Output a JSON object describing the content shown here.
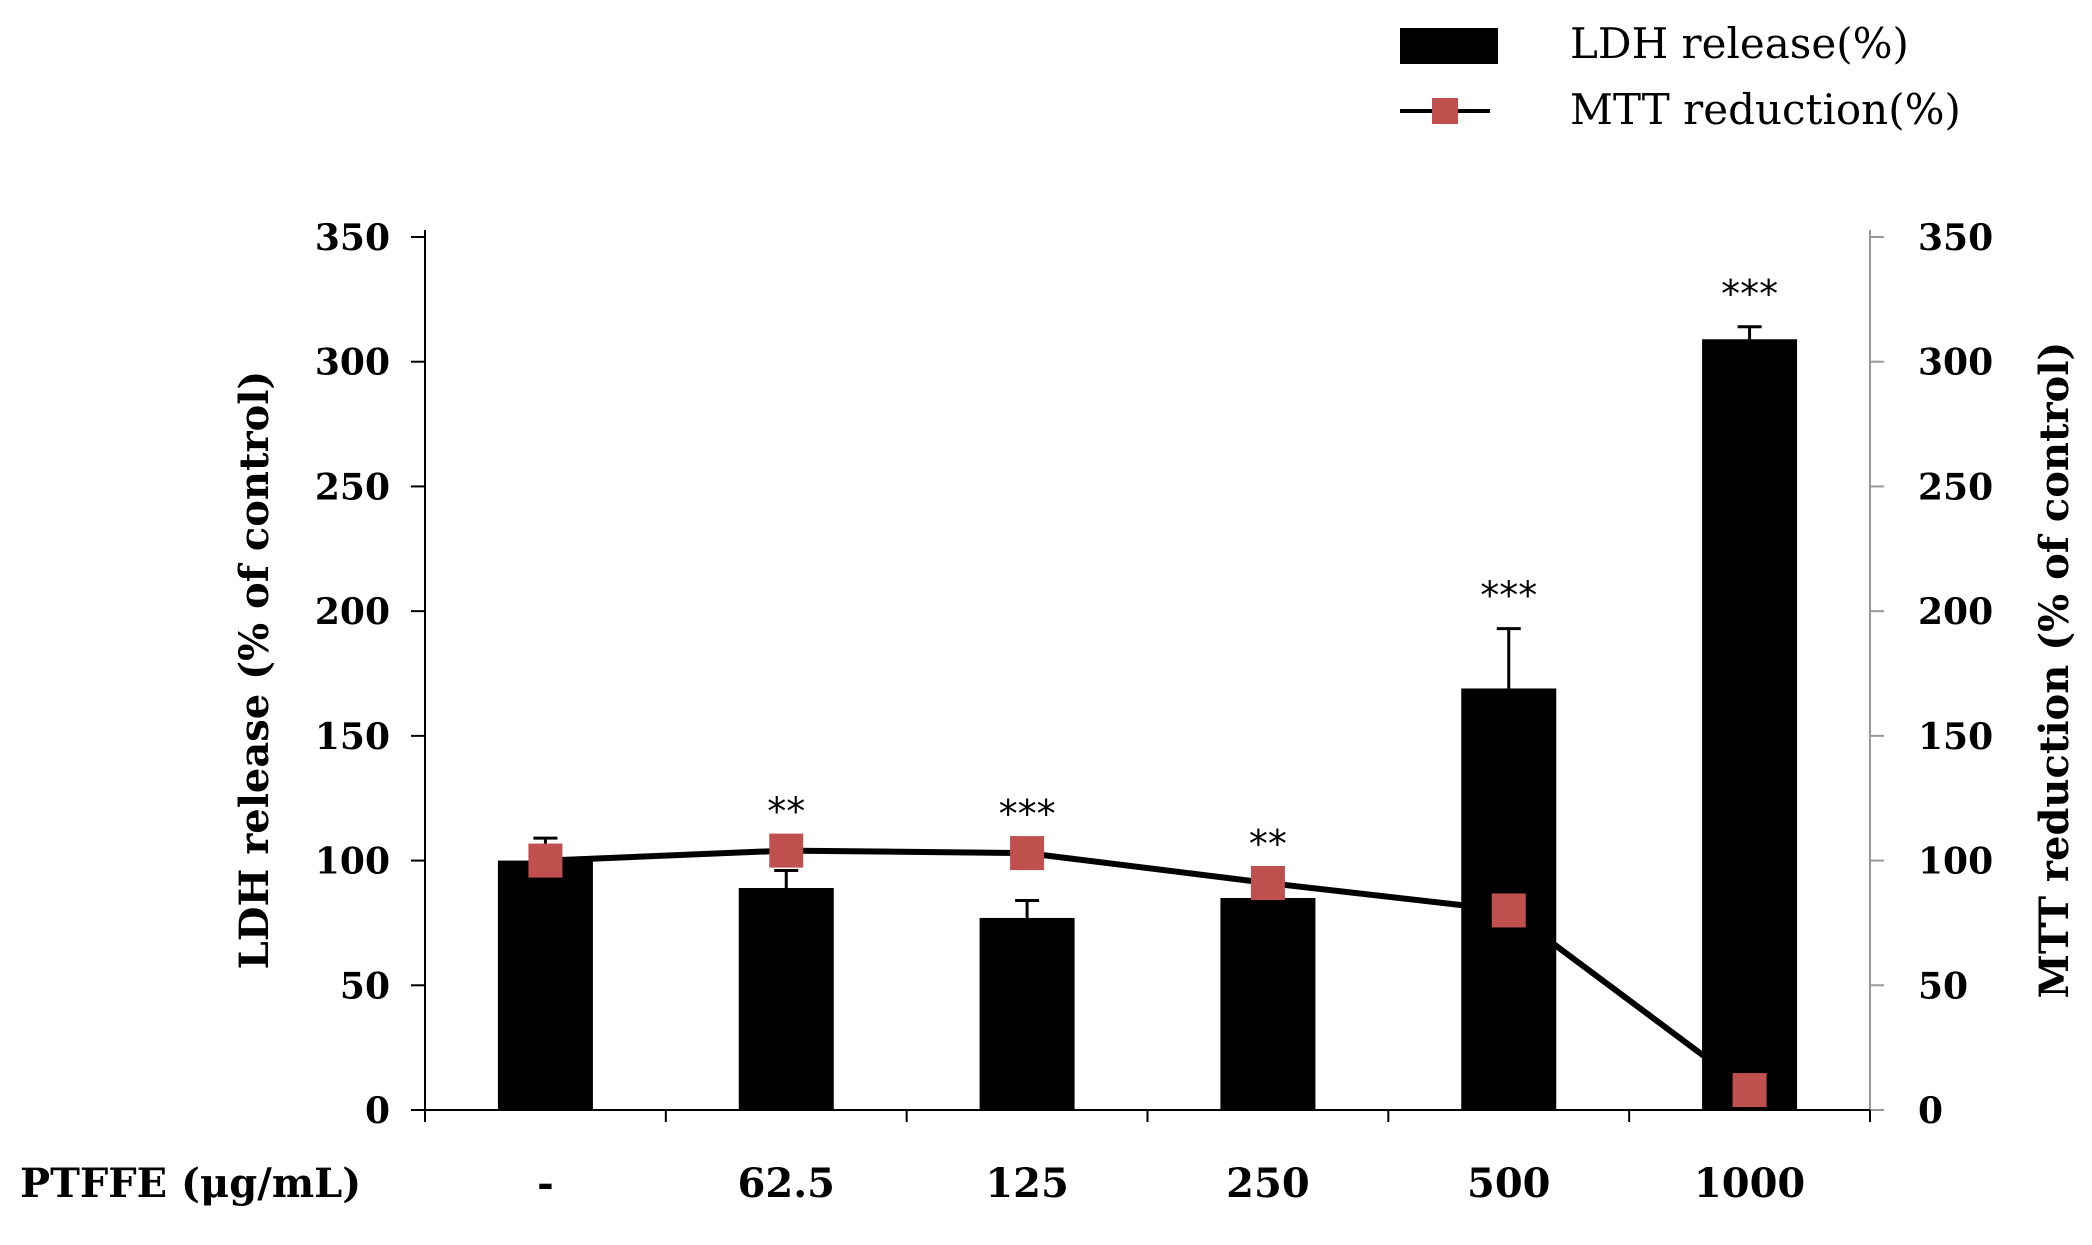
{
  "chart_data": {
    "type": "bar",
    "categories": [
      "-",
      "62.5",
      "125",
      "250",
      "500",
      "1000"
    ],
    "category_axis_label": "PTFFE (μg/mL)",
    "series": [
      {
        "name": "LDH release(%)",
        "kind": "bar",
        "axis": "left",
        "values": [
          100,
          89,
          77,
          85,
          169,
          309
        ],
        "error": [
          9,
          7,
          7,
          0,
          24,
          5
        ],
        "significance": [
          "",
          "",
          "",
          "",
          "***",
          "***"
        ],
        "color": "#000000"
      },
      {
        "name": "MTT reduction(%)",
        "kind": "line",
        "axis": "right",
        "values": [
          100,
          104,
          103,
          91,
          80,
          8
        ],
        "significance": [
          "",
          "**",
          "***",
          "**",
          "",
          ""
        ],
        "color": "#000000",
        "marker_color": "#c0504d"
      }
    ],
    "ylabel_left": "LDH release (% of control)",
    "ylabel_right": "MTT reduction (% of control)",
    "ylim_left": [
      0,
      350
    ],
    "ylim_right": [
      0,
      350
    ],
    "yticks": [
      0,
      50,
      100,
      150,
      200,
      250,
      300,
      350
    ],
    "grid": false,
    "legend_position": "top-right"
  }
}
